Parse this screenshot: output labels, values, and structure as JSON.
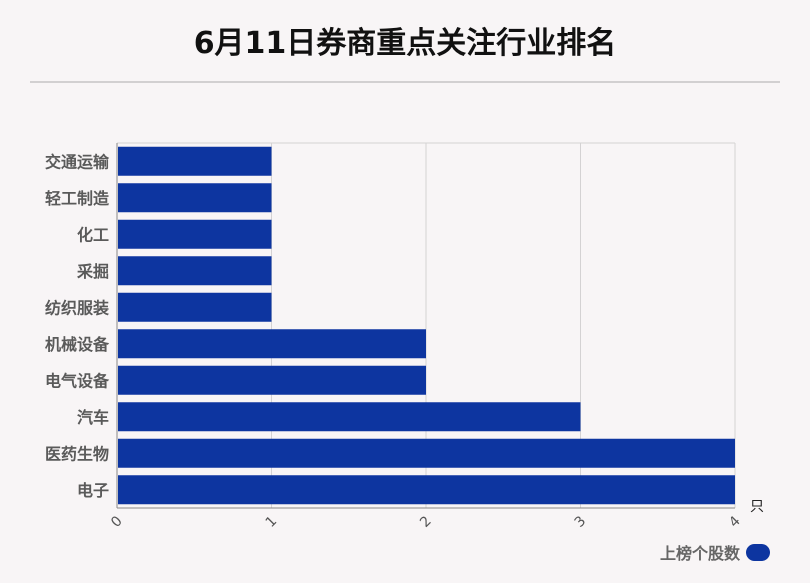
{
  "title": "6月11日券商重点关注行业排名",
  "legend": {
    "label": "上榜个股数"
  },
  "chart_data": {
    "type": "bar",
    "orientation": "horizontal",
    "title": "6月11日券商重点关注行业排名",
    "categories": [
      "交通运输",
      "轻工制造",
      "化工",
      "采掘",
      "纺织服装",
      "机械设备",
      "电气设备",
      "汽车",
      "医药生物",
      "电子"
    ],
    "series": [
      {
        "name": "上榜个股数",
        "values": [
          1,
          1,
          1,
          1,
          1,
          2,
          2,
          3,
          4,
          4
        ],
        "color": "#0d35a0"
      }
    ],
    "xlim": [
      0,
      4
    ],
    "xticks": [
      "0",
      "1",
      "2",
      "3",
      "4"
    ],
    "xunit": "只",
    "grid": true,
    "legend_position": "bottom-right"
  }
}
